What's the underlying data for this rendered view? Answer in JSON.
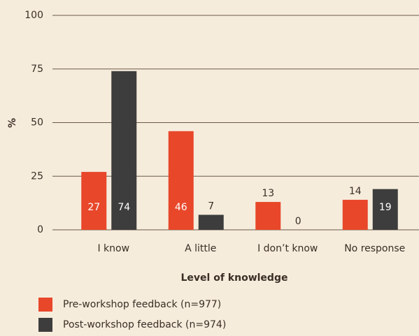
{
  "chart_data": {
    "type": "bar",
    "xlabel": "Level of knowledge",
    "ylabel": "%",
    "categories": [
      "I know",
      "A little",
      "I don’t know",
      "No response"
    ],
    "series": [
      {
        "name": "Pre-workshop feedback (n=977)",
        "color": "#e8472a",
        "values": [
          27,
          46,
          13,
          14
        ]
      },
      {
        "name": "Post-workshop feedback (n=974)",
        "color": "#3d3d3d",
        "values": [
          74,
          7,
          0,
          19
        ]
      }
    ],
    "ylim": [
      0,
      100
    ],
    "yticks": [
      0,
      25,
      50,
      75,
      100
    ],
    "grid": true
  }
}
